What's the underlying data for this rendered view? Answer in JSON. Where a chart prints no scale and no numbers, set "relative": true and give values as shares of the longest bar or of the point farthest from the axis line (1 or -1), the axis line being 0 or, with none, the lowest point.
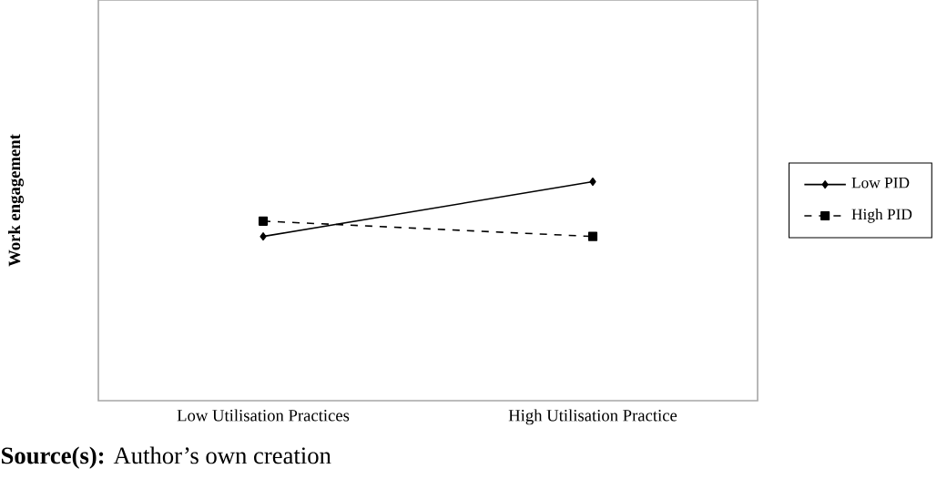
{
  "chart_data": {
    "type": "line",
    "ylabel": "Work engagement",
    "relative": true,
    "categories": [
      "Low Utilisation Practices",
      "High Utilisation Practice"
    ],
    "series": [
      {
        "name": "Low PID",
        "color": "#000000",
        "values": [
          0.75,
          1
        ],
        "marker": "diamond",
        "line_style": "solid"
      },
      {
        "name": "High PID",
        "color": "#000000",
        "values": [
          0.82,
          0.75
        ],
        "marker": "square",
        "line_style": "dashed"
      }
    ],
    "legend": "right",
    "annotations": [
      "**Source(s):** Author’s own creation"
    ]
  }
}
